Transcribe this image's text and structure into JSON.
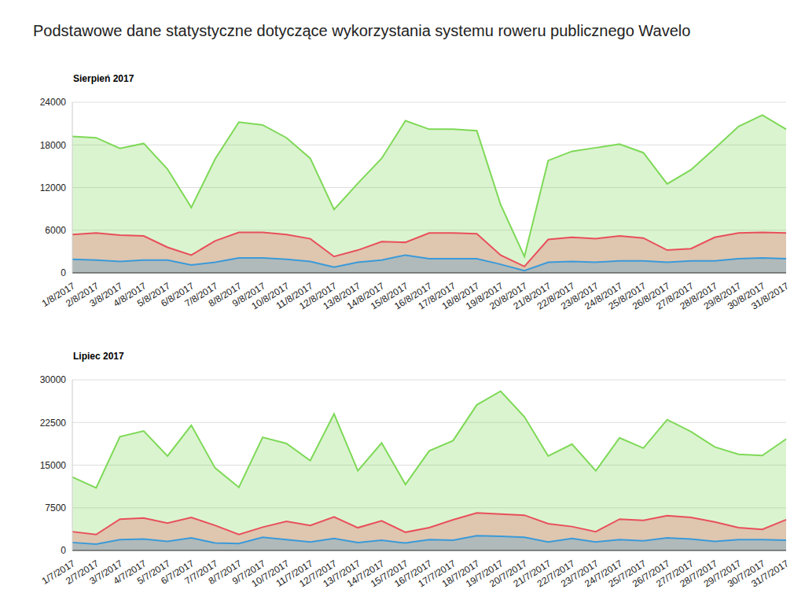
{
  "title": "Podstawowe dane statystyczne dotyczące wykorzystania systemu roweru publicznego Wavelo",
  "chart_data": [
    {
      "type": "area",
      "title": "Sierpień 2017",
      "categories": [
        "1/8/2017",
        "2/8/2017",
        "3/8/2017",
        "4/8/2017",
        "5/8/2017",
        "6/8/2017",
        "7/8/2017",
        "8/8/2017",
        "9/8/2017",
        "10/8/2017",
        "11/8/2017",
        "12/8/2017",
        "13/8/2017",
        "14/8/2017",
        "15/8/2017",
        "16/8/2017",
        "17/8/2017",
        "18/8/2017",
        "19/8/2017",
        "20/8/2017",
        "21/8/2017",
        "22/8/2017",
        "23/8/2017",
        "24/8/2017",
        "25/8/2017",
        "26/8/2017",
        "27/8/2017",
        "28/8/2017",
        "29/8/2017",
        "30/8/2017",
        "31/8/2017"
      ],
      "series": [
        {
          "color": "#7ed957",
          "values": [
            19200,
            19000,
            17500,
            18200,
            14600,
            9200,
            16000,
            21200,
            20800,
            19000,
            16100,
            8900,
            12600,
            16100,
            21400,
            20200,
            20200,
            20000,
            9600,
            2300,
            15800,
            17100,
            17600,
            18100,
            16900,
            12500,
            14500,
            17500,
            20600,
            22200,
            20200
          ]
        },
        {
          "color": "#e8505b",
          "values": [
            5400,
            5600,
            5300,
            5200,
            3600,
            2500,
            4500,
            5700,
            5700,
            5400,
            4800,
            2300,
            3200,
            4400,
            4300,
            5600,
            5600,
            5500,
            2500,
            900,
            4700,
            5000,
            4800,
            5200,
            4900,
            3200,
            3400,
            5000,
            5600,
            5700,
            5600
          ]
        },
        {
          "color": "#3a9ad9",
          "values": [
            1900,
            1800,
            1600,
            1800,
            1800,
            1100,
            1500,
            2100,
            2100,
            1900,
            1600,
            800,
            1500,
            1800,
            2500,
            2000,
            2000,
            2000,
            1200,
            300,
            1500,
            1600,
            1500,
            1700,
            1700,
            1500,
            1700,
            1700,
            2000,
            2100,
            2000
          ]
        }
      ],
      "ylim": [
        0,
        24000
      ],
      "yticks": [
        0,
        6000,
        12000,
        18000,
        24000
      ],
      "grid": true
    },
    {
      "type": "area",
      "title": "Lipiec 2017",
      "categories": [
        "1/7/2017",
        "2/7/2017",
        "3/7/2017",
        "4/7/2017",
        "5/7/2017",
        "6/7/2017",
        "7/7/2017",
        "8/7/2017",
        "9/7/2017",
        "10/7/2017",
        "11/7/2017",
        "12/7/2017",
        "13/7/2017",
        "14/7/2017",
        "15/7/2017",
        "16/7/2017",
        "17/7/2017",
        "18/7/2017",
        "19/7/2017",
        "20/7/2017",
        "21/7/2017",
        "22/7/2017",
        "23/7/2017",
        "24/7/2017",
        "25/7/2017",
        "26/7/2017",
        "27/7/2017",
        "28/7/2017",
        "29/7/2017",
        "30/7/2017",
        "31/7/2017"
      ],
      "series": [
        {
          "color": "#7ed957",
          "values": [
            12900,
            11000,
            20000,
            21000,
            16600,
            22000,
            14500,
            11100,
            19900,
            18800,
            15800,
            24000,
            14000,
            18900,
            11600,
            17500,
            19300,
            25600,
            28000,
            23500,
            16600,
            18700,
            14000,
            19800,
            18000,
            23000,
            20900,
            18200,
            16900,
            16700,
            19600
          ]
        },
        {
          "color": "#e8505b",
          "values": [
            3300,
            2800,
            5500,
            5700,
            4800,
            5800,
            4400,
            2800,
            4100,
            5100,
            4400,
            5900,
            4000,
            5200,
            3200,
            4000,
            5400,
            6600,
            6400,
            6200,
            4700,
            4200,
            3300,
            5500,
            5300,
            6100,
            5800,
            5000,
            4000,
            3700,
            5400
          ]
        },
        {
          "color": "#3a9ad9",
          "values": [
            1400,
            1100,
            1900,
            2000,
            1600,
            2200,
            1300,
            1200,
            2300,
            1900,
            1500,
            2100,
            1400,
            1800,
            1300,
            1900,
            1800,
            2600,
            2500,
            2300,
            1500,
            2100,
            1500,
            1900,
            1700,
            2200,
            2000,
            1600,
            1900,
            1900,
            1800
          ]
        }
      ],
      "ylim": [
        0,
        30000
      ],
      "yticks": [
        0,
        7500,
        15000,
        22500,
        30000
      ],
      "grid": true
    }
  ]
}
